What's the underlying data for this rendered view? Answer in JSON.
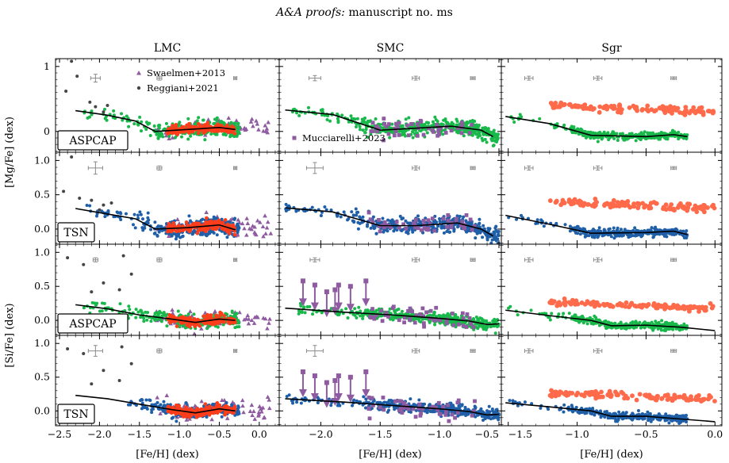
{
  "header": {
    "journal": "A&A proofs:",
    "manuscript": "manuscript no. ms"
  },
  "chart_data": {
    "type": "scatter",
    "columns": [
      "LMC",
      "SMC",
      "Sgr"
    ],
    "row_labels": [
      "ASPCAP",
      "TSN",
      "ASPCAP",
      "TSN"
    ],
    "ylabel_top": "[Mg/Fe] (dex)",
    "ylabel_bottom": "[Si/Fe] (dex)",
    "xlabel": "[Fe/H] (dex)",
    "xlim": [
      [
        -2.55,
        0.25
      ],
      [
        -2.35,
        -0.48
      ],
      [
        -1.55,
        0.05
      ]
    ],
    "ylim": [
      [
        -0.32,
        1.12
      ],
      [
        -0.22,
        1.12
      ],
      [
        -0.22,
        1.12
      ],
      [
        -0.22,
        1.12
      ]
    ],
    "xticks": [
      [
        -2.5,
        -2.0,
        -1.5,
        -1.0,
        -0.5,
        0.0
      ],
      [
        -2.0,
        -1.5,
        -1.0,
        -0.5
      ],
      [
        -1.5,
        -1.0,
        -0.5,
        0.0
      ]
    ],
    "xtick_labels": [
      [
        "−2.5",
        "−2.0",
        "−1.5",
        "−1.0",
        "−0.5",
        "0.0"
      ],
      [
        "−2.0",
        "−1.5",
        "−1.0",
        "−0.5"
      ],
      [
        "−1.5",
        "−1.0",
        "−0.5",
        "0.0"
      ]
    ],
    "yticks": [
      [
        0,
        1
      ],
      [
        0.0,
        0.5,
        1.0
      ],
      [
        0.0,
        0.5,
        1.0
      ],
      [
        0.0,
        0.5,
        1.0
      ]
    ],
    "ytick_labels": [
      [
        "0",
        "1"
      ],
      [
        "0.0",
        "0.5",
        "1.0"
      ],
      [
        "0.0",
        "0.5",
        "1.0"
      ],
      [
        "0.0",
        "0.5",
        "1.0"
      ]
    ],
    "legend": {
      "Swaelmen+2013": {
        "marker": "triangle",
        "color": "#8e5ba0"
      },
      "Reggiani+2021": {
        "marker": "circle",
        "color": "#454545"
      },
      "Mucciarelli+2023": {
        "marker": "square",
        "color": "#8e5ba0"
      }
    },
    "colors": {
      "aspcap": "#18b84a",
      "tsn": "#1f5fa8",
      "apogee_red": "#ff3d1a",
      "sgr_red": "#ff6a4a",
      "literature": "#8e5ba0",
      "reggiani": "#454545",
      "trend": "#000000",
      "error_bar": "#8a8a8a"
    },
    "trend_lines": {
      "0": {
        "LMC": [
          [
            -2.3,
            0.32
          ],
          [
            -1.9,
            0.25
          ],
          [
            -1.55,
            0.16
          ],
          [
            -1.3,
            0.0
          ],
          [
            -0.9,
            0.03
          ],
          [
            -0.5,
            0.06
          ],
          [
            -0.3,
            0.03
          ]
        ],
        "SMC": [
          [
            -2.3,
            0.33
          ],
          [
            -1.9,
            0.26
          ],
          [
            -1.5,
            0.02
          ],
          [
            -1.2,
            0.05
          ],
          [
            -0.9,
            0.08
          ],
          [
            -0.65,
            0.02
          ],
          [
            -0.55,
            -0.08
          ]
        ],
        "Sgr": [
          [
            -1.52,
            0.23
          ],
          [
            -1.2,
            0.12
          ],
          [
            -0.9,
            -0.06
          ],
          [
            -0.5,
            -0.08
          ],
          [
            -0.3,
            -0.05
          ],
          [
            -0.2,
            -0.08
          ]
        ]
      },
      "1": {
        "LMC": [
          [
            -2.3,
            0.3
          ],
          [
            -1.9,
            0.22
          ],
          [
            -1.55,
            0.15
          ],
          [
            -1.3,
            0.0
          ],
          [
            -0.9,
            0.02
          ],
          [
            -0.5,
            0.06
          ],
          [
            -0.3,
            -0.01
          ]
        ],
        "SMC": [
          [
            -2.3,
            0.31
          ],
          [
            -1.9,
            0.25
          ],
          [
            -1.5,
            0.05
          ],
          [
            -1.2,
            0.05
          ],
          [
            -0.85,
            0.09
          ],
          [
            -0.65,
            0.0
          ],
          [
            -0.55,
            -0.1
          ]
        ],
        "Sgr": [
          [
            -1.52,
            0.2
          ],
          [
            -1.2,
            0.07
          ],
          [
            -0.9,
            -0.06
          ],
          [
            -0.5,
            -0.05
          ],
          [
            -0.3,
            -0.03
          ],
          [
            -0.2,
            -0.08
          ]
        ]
      },
      "2": {
        "LMC": [
          [
            -2.3,
            0.23
          ],
          [
            -1.9,
            0.17
          ],
          [
            -1.5,
            0.08
          ],
          [
            -1.1,
            0.02
          ],
          [
            -0.8,
            -0.03
          ],
          [
            -0.5,
            0.02
          ],
          [
            -0.3,
            0.0
          ]
        ],
        "SMC": [
          [
            -2.3,
            0.18
          ],
          [
            -1.8,
            0.12
          ],
          [
            -1.4,
            0.08
          ],
          [
            -1.0,
            0.03
          ],
          [
            -0.75,
            -0.01
          ],
          [
            -0.6,
            -0.06
          ],
          [
            -0.5,
            -0.05
          ]
        ],
        "Sgr": [
          [
            -1.52,
            0.15
          ],
          [
            -1.2,
            0.07
          ],
          [
            -0.9,
            0.0
          ],
          [
            -0.75,
            -0.08
          ],
          [
            -0.5,
            -0.07
          ],
          [
            -0.25,
            -0.1
          ],
          [
            0.0,
            -0.15
          ]
        ]
      },
      "3": {
        "LMC": [
          [
            -2.3,
            0.23
          ],
          [
            -1.9,
            0.18
          ],
          [
            -1.5,
            0.1
          ],
          [
            -1.1,
            0.02
          ],
          [
            -0.8,
            -0.03
          ],
          [
            -0.5,
            0.03
          ],
          [
            -0.3,
            0.0
          ]
        ],
        "SMC": [
          [
            -2.3,
            0.18
          ],
          [
            -1.8,
            0.13
          ],
          [
            -1.4,
            0.08
          ],
          [
            -1.0,
            0.03
          ],
          [
            -0.75,
            -0.01
          ],
          [
            -0.6,
            -0.06
          ],
          [
            -0.5,
            -0.05
          ]
        ],
        "Sgr": [
          [
            -1.52,
            0.12
          ],
          [
            -1.2,
            0.06
          ],
          [
            -0.9,
            0.0
          ],
          [
            -0.75,
            -0.08
          ],
          [
            -0.5,
            -0.08
          ],
          [
            -0.25,
            -0.12
          ],
          [
            0.0,
            -0.16
          ]
        ]
      }
    },
    "error_bars": {
      "0": {
        "LMC": [
          [
            -2.05,
            0.82,
            0.06,
            0.06
          ],
          [
            -1.25,
            0.82,
            0.03,
            0.03
          ],
          [
            -0.3,
            0.82,
            0.02,
            0.02
          ]
        ],
        "SMC": [
          [
            -2.05,
            0.82,
            0.05,
            0.04
          ],
          [
            -1.2,
            0.82,
            0.03,
            0.03
          ],
          [
            -0.72,
            0.82,
            0.02,
            0.02
          ]
        ],
        "Sgr": [
          [
            -1.35,
            0.82,
            0.03,
            0.03
          ],
          [
            -0.85,
            0.82,
            0.03,
            0.03
          ],
          [
            -0.3,
            0.82,
            0.02,
            0.02
          ]
        ]
      },
      "1": {
        "LMC": [
          [
            -2.05,
            0.89,
            0.09,
            0.09
          ],
          [
            -1.25,
            0.89,
            0.03,
            0.03
          ],
          [
            -0.3,
            0.89,
            0.02,
            0.02
          ]
        ],
        "SMC": [
          [
            -2.05,
            0.89,
            0.07,
            0.08
          ],
          [
            -1.2,
            0.89,
            0.03,
            0.03
          ],
          [
            -0.72,
            0.89,
            0.02,
            0.02
          ]
        ],
        "Sgr": [
          [
            -1.35,
            0.89,
            0.03,
            0.03
          ],
          [
            -0.85,
            0.89,
            0.03,
            0.03
          ],
          [
            -0.3,
            0.89,
            0.02,
            0.02
          ]
        ]
      },
      "2": {
        "LMC": [
          [
            -2.05,
            0.89,
            0.03,
            0.03
          ],
          [
            -1.25,
            0.89,
            0.03,
            0.03
          ],
          [
            -0.3,
            0.89,
            0.02,
            0.02
          ]
        ],
        "SMC": [
          [
            -2.05,
            0.89,
            0.04,
            0.03
          ],
          [
            -1.2,
            0.89,
            0.03,
            0.03
          ],
          [
            -0.72,
            0.89,
            0.02,
            0.02
          ]
        ],
        "Sgr": [
          [
            -1.35,
            0.89,
            0.03,
            0.03
          ],
          [
            -0.85,
            0.89,
            0.03,
            0.03
          ],
          [
            -0.3,
            0.89,
            0.02,
            0.02
          ]
        ]
      },
      "3": {
        "LMC": [
          [
            -2.05,
            0.89,
            0.09,
            0.08
          ],
          [
            -1.25,
            0.89,
            0.03,
            0.03
          ],
          [
            -0.3,
            0.89,
            0.02,
            0.02
          ]
        ],
        "SMC": [
          [
            -2.05,
            0.89,
            0.07,
            0.08
          ],
          [
            -1.2,
            0.89,
            0.03,
            0.03
          ],
          [
            -0.72,
            0.89,
            0.02,
            0.02
          ]
        ],
        "Sgr": [
          [
            -1.35,
            0.89,
            0.03,
            0.03
          ],
          [
            -0.85,
            0.89,
            0.03,
            0.03
          ],
          [
            -0.3,
            0.89,
            0.02,
            0.02
          ]
        ]
      }
    },
    "reggiani_points": {
      "0": [
        [
          -2.35,
          1.08
        ],
        [
          -2.28,
          0.85
        ],
        [
          -2.42,
          0.62
        ],
        [
          -2.12,
          0.45
        ],
        [
          -2.05,
          0.38
        ],
        [
          -1.9,
          0.4
        ],
        [
          -1.95,
          0.3
        ]
      ],
      "1": [
        [
          -2.35,
          1.05
        ],
        [
          -2.45,
          0.55
        ],
        [
          -2.25,
          0.45
        ],
        [
          -2.1,
          0.42
        ],
        [
          -1.95,
          0.35
        ],
        [
          -1.85,
          0.38
        ],
        [
          -2.0,
          0.28
        ]
      ],
      "2": [
        [
          -2.4,
          0.92
        ],
        [
          -2.2,
          0.82
        ],
        [
          -1.95,
          0.55
        ],
        [
          -1.7,
          0.95
        ],
        [
          -1.6,
          0.68
        ],
        [
          -1.75,
          0.45
        ],
        [
          -2.1,
          0.42
        ]
      ],
      "3": [
        [
          -2.4,
          0.92
        ],
        [
          -2.2,
          0.85
        ],
        [
          -1.95,
          0.6
        ],
        [
          -1.72,
          0.95
        ],
        [
          -1.6,
          0.7
        ],
        [
          -1.75,
          0.45
        ],
        [
          -2.1,
          0.4
        ]
      ]
    },
    "mucciarelli_upper_limits": {
      "2": [
        [
          -2.15,
          0.58
        ],
        [
          -2.05,
          0.52
        ],
        [
          -1.88,
          0.45
        ],
        [
          -1.85,
          0.52
        ],
        [
          -1.75,
          0.5
        ],
        [
          -1.62,
          0.58
        ],
        [
          -1.95,
          0.42
        ]
      ],
      "3": [
        [
          -2.15,
          0.58
        ],
        [
          -2.05,
          0.52
        ],
        [
          -1.88,
          0.45
        ],
        [
          -1.85,
          0.52
        ],
        [
          -1.75,
          0.5
        ],
        [
          -1.62,
          0.58
        ],
        [
          -1.95,
          0.42
        ]
      ]
    },
    "aspcap_main_trend": [
      [
        -1.6,
        0.1
      ],
      [
        -1.2,
        0.03
      ],
      [
        -0.8,
        0.02
      ],
      [
        -0.4,
        0.0
      ]
    ],
    "scatter_model": {
      "LMC_main_fe_range": [
        -1.65,
        -0.25
      ],
      "LMC_red_fe_range": [
        -1.15,
        -0.3
      ],
      "SMC_main_fe_range": [
        -1.75,
        -0.5
      ],
      "Sgr_main_fe_range": [
        -1.05,
        -0.2
      ],
      "Sgr_red_fe_range": [
        -1.2,
        0.0
      ],
      "Sgr_red_level": [
        0.35,
        0.22
      ]
    }
  }
}
